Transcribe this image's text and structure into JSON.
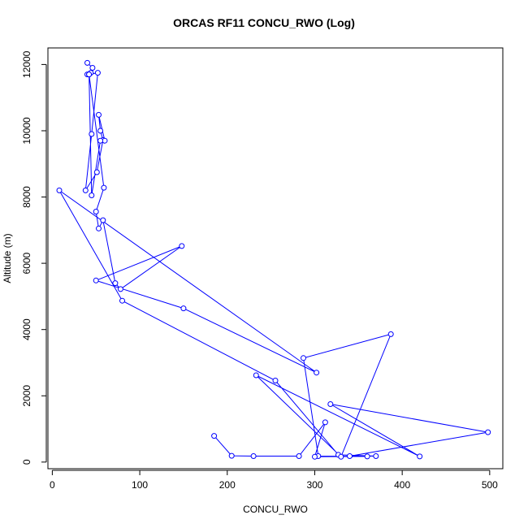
{
  "chart_data": {
    "type": "line",
    "title": "ORCAS RF11 CONCU_RWO (Log)",
    "xlabel": "CONCU_RWO",
    "ylabel": "Altitude (m)",
    "xlim": [
      -5,
      515
    ],
    "ylim": [
      -200,
      12500
    ],
    "x_ticks": [
      0,
      100,
      200,
      300,
      400,
      500
    ],
    "y_ticks": [
      0,
      2000,
      4000,
      6000,
      8000,
      10000,
      12000
    ],
    "grid": false,
    "legend": "none",
    "series": [
      {
        "color": "#0000ff",
        "marker": "open-circle",
        "x": [
          40,
          46,
          44,
          40,
          42,
          52,
          45,
          38,
          51,
          58,
          55,
          53,
          60,
          55,
          45,
          42,
          59,
          50,
          53,
          58,
          72,
          78,
          148,
          50,
          150,
          302,
          8,
          80,
          255,
          327,
          370,
          340,
          498,
          318,
          420,
          233,
          330,
          387,
          287,
          304,
          360,
          300,
          312,
          282,
          230,
          205,
          185
        ],
        "y": [
          12050,
          11900,
          11750,
          11700,
          11700,
          11750,
          9900,
          8200,
          8750,
          9720,
          10000,
          10480,
          9700,
          9700,
          8050,
          11700,
          8280,
          7560,
          7050,
          7300,
          5400,
          5220,
          6520,
          5480,
          4640,
          2700,
          8200,
          4870,
          2460,
          220,
          180,
          180,
          900,
          1750,
          170,
          2620,
          160,
          3860,
          3140,
          180,
          170,
          160,
          1200,
          180,
          180,
          190,
          790
        ]
      }
    ]
  }
}
